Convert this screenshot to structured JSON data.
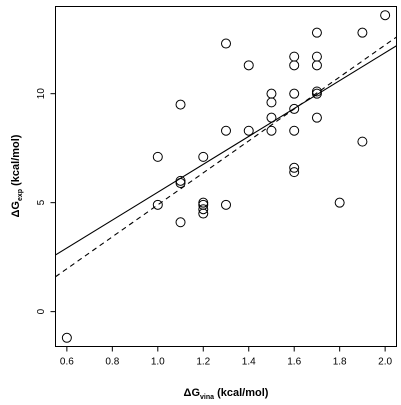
{
  "chart_data": {
    "type": "scatter",
    "xlabel": {
      "prefix": "ΔG",
      "sub": "vina",
      "suffix": " (kcal/mol)"
    },
    "ylabel": {
      "prefix": "ΔG",
      "sub": "exp",
      "suffix": " (kcal/mol)"
    },
    "xlim": [
      0.55,
      2.05
    ],
    "ylim": [
      -1.6,
      14.0
    ],
    "xticks": [
      0.6,
      0.8,
      1.0,
      1.2,
      1.4,
      1.6,
      1.8,
      2.0
    ],
    "xtick_labels": [
      "0.6",
      "0.8",
      "1.0",
      "1.2",
      "1.4",
      "1.6",
      "1.8",
      "2.0"
    ],
    "yticks": [
      0,
      5,
      10
    ],
    "ytick_labels": [
      "0",
      "5",
      "10"
    ],
    "grid": false,
    "legend": "none",
    "points": [
      {
        "x": 0.6,
        "y": -1.2
      },
      {
        "x": 1.0,
        "y": 4.9
      },
      {
        "x": 1.0,
        "y": 7.1
      },
      {
        "x": 1.1,
        "y": 4.1
      },
      {
        "x": 1.1,
        "y": 5.9
      },
      {
        "x": 1.1,
        "y": 6.0
      },
      {
        "x": 1.1,
        "y": 9.5
      },
      {
        "x": 1.2,
        "y": 4.5
      },
      {
        "x": 1.2,
        "y": 4.7
      },
      {
        "x": 1.2,
        "y": 4.9
      },
      {
        "x": 1.2,
        "y": 5.0
      },
      {
        "x": 1.2,
        "y": 7.1
      },
      {
        "x": 1.3,
        "y": 4.9
      },
      {
        "x": 1.3,
        "y": 8.3
      },
      {
        "x": 1.3,
        "y": 12.3
      },
      {
        "x": 1.4,
        "y": 8.3
      },
      {
        "x": 1.4,
        "y": 11.3
      },
      {
        "x": 1.5,
        "y": 8.3
      },
      {
        "x": 1.5,
        "y": 8.9
      },
      {
        "x": 1.5,
        "y": 9.6
      },
      {
        "x": 1.5,
        "y": 10.0
      },
      {
        "x": 1.6,
        "y": 6.4
      },
      {
        "x": 1.6,
        "y": 6.6
      },
      {
        "x": 1.6,
        "y": 8.3
      },
      {
        "x": 1.6,
        "y": 9.3
      },
      {
        "x": 1.6,
        "y": 10.0
      },
      {
        "x": 1.6,
        "y": 11.3
      },
      {
        "x": 1.6,
        "y": 11.7
      },
      {
        "x": 1.7,
        "y": 8.9
      },
      {
        "x": 1.7,
        "y": 10.0
      },
      {
        "x": 1.7,
        "y": 10.1
      },
      {
        "x": 1.7,
        "y": 11.3
      },
      {
        "x": 1.7,
        "y": 11.7
      },
      {
        "x": 1.7,
        "y": 12.8
      },
      {
        "x": 1.8,
        "y": 5.0
      },
      {
        "x": 1.9,
        "y": 7.8
      },
      {
        "x": 1.9,
        "y": 12.8
      },
      {
        "x": 2.0,
        "y": 13.6
      }
    ],
    "lines": [
      {
        "style": "solid",
        "x": [
          0.55,
          2.05
        ],
        "y": [
          2.6,
          12.2
        ]
      },
      {
        "style": "dashed",
        "x": [
          0.55,
          2.05
        ],
        "y": [
          1.6,
          12.6
        ]
      }
    ]
  }
}
